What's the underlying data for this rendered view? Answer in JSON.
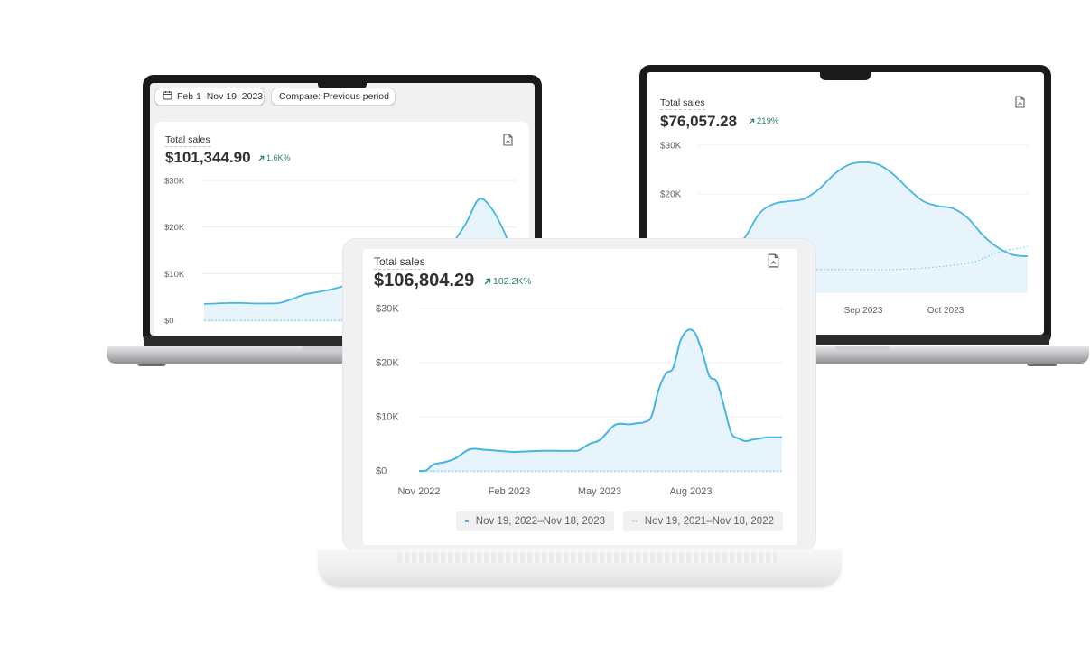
{
  "left_dashboard": {
    "date_range_label": "Feb 1–Nov 19, 2023",
    "compare_label": "Compare: Previous period",
    "title": "Total sales",
    "total": "$101,344.90",
    "change": "1.6K%",
    "icons": {
      "calendar": "calendar-icon",
      "export": "export-report-icon",
      "trend": "arrow-up-right-icon"
    },
    "chart_data": {
      "type": "area",
      "y_ticks": [
        "$30K",
        "$20K",
        "$10K",
        "$0"
      ],
      "ylim": [
        0,
        30000
      ],
      "series": [
        {
          "style": "solid",
          "x": [
            0,
            4,
            8,
            12,
            16,
            20,
            24,
            28,
            32,
            36,
            40,
            44,
            48,
            52,
            56,
            60,
            64,
            68,
            72,
            76,
            80,
            84,
            88,
            92,
            96,
            100
          ],
          "values": [
            3500,
            3600,
            3700,
            3700,
            3600,
            3600,
            3700,
            4500,
            5500,
            6000,
            6500,
            7200,
            8200,
            9000,
            9200,
            9500,
            10000,
            11000,
            12500,
            14000,
            17000,
            21000,
            26000,
            24000,
            19000,
            12000
          ]
        },
        {
          "style": "dotted",
          "x": [
            0,
            100
          ],
          "values": [
            0,
            0
          ]
        }
      ]
    }
  },
  "right_dashboard": {
    "title": "Total sales",
    "total": "$76,057.28",
    "change": "219%",
    "icons": {
      "export": "export-report-icon",
      "trend": "arrow-up-right-icon"
    },
    "chart_data": {
      "type": "area",
      "y_ticks": [
        "$30K",
        "$20K"
      ],
      "x_ticks": [
        "Sep 2023",
        "Oct 2023"
      ],
      "ylim": [
        0,
        30000
      ],
      "series": [
        {
          "style": "solid",
          "x": [
            0,
            5,
            10,
            15,
            20,
            25,
            30,
            35,
            40,
            45,
            50,
            55,
            60,
            65,
            70,
            75,
            80,
            85,
            90,
            95,
            100
          ],
          "values": [
            8500,
            11000,
            16000,
            18000,
            18500,
            19000,
            21000,
            24000,
            26000,
            26500,
            26000,
            24000,
            21000,
            18500,
            17500,
            17000,
            15000,
            11500,
            9000,
            7500,
            7200
          ]
        },
        {
          "style": "dotted",
          "x": [
            0,
            20,
            40,
            60,
            80,
            90,
            100
          ],
          "values": [
            4600,
            4500,
            4500,
            4600,
            5800,
            8000,
            9200
          ]
        }
      ]
    }
  },
  "main_dashboard": {
    "title": "Total sales",
    "total": "$106,804.29",
    "change": "102.2K%",
    "icons": {
      "export": "export-report-icon",
      "trend": "arrow-up-right-icon"
    },
    "chart_data": {
      "type": "area",
      "y_ticks": [
        "$30K",
        "$20K",
        "$10K",
        "$0"
      ],
      "x_ticks": [
        "Nov 2022",
        "Feb 2023",
        "May 2023",
        "Aug 2023"
      ],
      "ylim": [
        0,
        30000
      ],
      "legend": [
        "Nov 19, 2022–Nov 18, 2023",
        "Nov 19, 2021–Nov 18, 2022"
      ],
      "legend_position": "bottom",
      "series": [
        {
          "name": "Nov 19, 2022–Nov 18, 2023",
          "style": "solid",
          "x": [
            0,
            2,
            4,
            7,
            10,
            14,
            18,
            22,
            26,
            30,
            34,
            38,
            42,
            44,
            47,
            50,
            54,
            58,
            60,
            62,
            64,
            66,
            68,
            70,
            72,
            74,
            76,
            78,
            80,
            82,
            84,
            86,
            88,
            90,
            92,
            94,
            96,
            98,
            100
          ],
          "values": [
            0,
            100,
            1200,
            1600,
            2300,
            4000,
            3900,
            3700,
            3500,
            3600,
            3700,
            3700,
            3700,
            3800,
            5000,
            5800,
            8500,
            8600,
            8800,
            9000,
            10000,
            15000,
            18000,
            19000,
            24000,
            26000,
            25500,
            22000,
            17500,
            16500,
            12000,
            7000,
            6000,
            5500,
            5800,
            6000,
            6200,
            6200,
            6200
          ]
        },
        {
          "name": "Nov 19, 2021–Nov 18, 2022",
          "style": "dotted",
          "x": [
            0,
            100
          ],
          "values": [
            0,
            0
          ]
        }
      ]
    }
  },
  "colors": {
    "series": "#45b5e6",
    "series_fill": "#e7f4fc",
    "comparison": "#7dcbed",
    "grid": "#ececec",
    "axis_text": "#616161",
    "positive": "#29845a"
  }
}
